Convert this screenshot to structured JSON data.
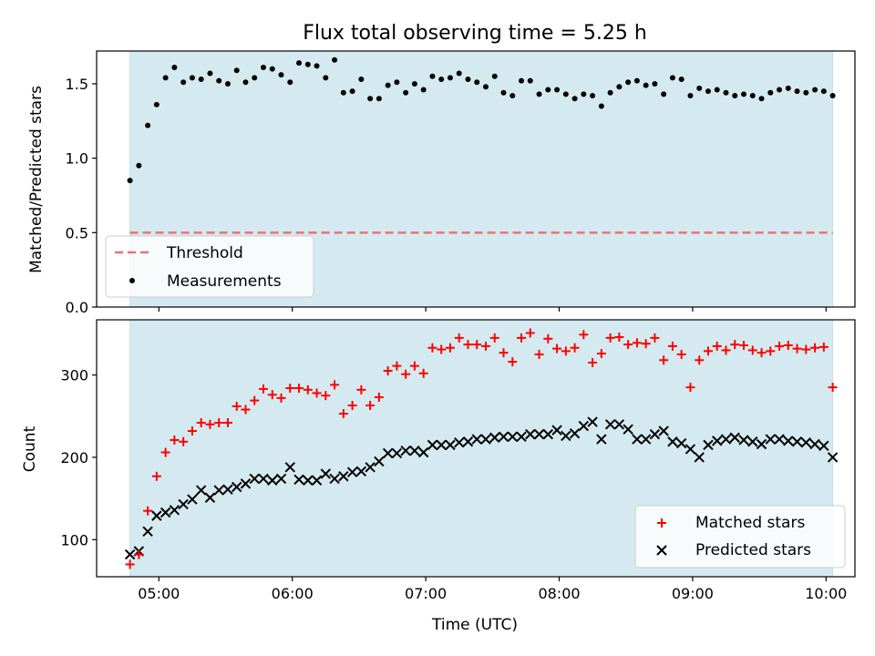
{
  "title": "Flux total observing time = 5.25 h",
  "colors": {
    "shade": "#d4eaf0",
    "threshold": "#f07070",
    "measurement": "#000000",
    "matched": "#ff0000",
    "predicted": "#000000"
  },
  "chart_data": [
    {
      "type": "scatter",
      "ylabel": "Matched/Predicted stars",
      "ylim": [
        0,
        1.72
      ],
      "yticks": [
        "0.0",
        "0.5",
        "1.0",
        "1.5"
      ],
      "yticks_values": [
        0,
        0.5,
        1.0,
        1.5
      ],
      "threshold": 0.5,
      "shaded_range": [
        "04:47",
        "10:03"
      ],
      "legend": {
        "placement": "lower-left",
        "entries": [
          "Threshold",
          "Measurements"
        ]
      },
      "series": [
        {
          "name": "Measurements",
          "x": [
            "04:47",
            "04:51",
            "04:55",
            "04:59",
            "05:03",
            "05:07",
            "05:11",
            "05:15",
            "05:19",
            "05:23",
            "05:27",
            "05:31",
            "05:35",
            "05:39",
            "05:43",
            "05:47",
            "05:51",
            "05:55",
            "05:59",
            "06:03",
            "06:07",
            "06:11",
            "06:15",
            "06:19",
            "06:23",
            "06:27",
            "06:31",
            "06:35",
            "06:39",
            "06:43",
            "06:47",
            "06:51",
            "06:55",
            "06:59",
            "07:03",
            "07:07",
            "07:11",
            "07:15",
            "07:19",
            "07:23",
            "07:27",
            "07:31",
            "07:35",
            "07:39",
            "07:43",
            "07:47",
            "07:51",
            "07:55",
            "07:59",
            "08:03",
            "08:07",
            "08:11",
            "08:15",
            "08:19",
            "08:23",
            "08:27",
            "08:31",
            "08:35",
            "08:39",
            "08:43",
            "08:47",
            "08:51",
            "08:55",
            "08:59",
            "09:03",
            "09:07",
            "09:11",
            "09:15",
            "09:19",
            "09:23",
            "09:27",
            "09:31",
            "09:35",
            "09:39",
            "09:43",
            "09:47",
            "09:51",
            "09:55",
            "09:59",
            "10:03"
          ],
          "y": [
            0.85,
            0.95,
            1.22,
            1.36,
            1.54,
            1.61,
            1.51,
            1.54,
            1.53,
            1.57,
            1.52,
            1.5,
            1.59,
            1.51,
            1.54,
            1.61,
            1.6,
            1.56,
            1.51,
            1.64,
            1.63,
            1.62,
            1.54,
            1.66,
            1.44,
            1.45,
            1.53,
            1.4,
            1.4,
            1.49,
            1.51,
            1.44,
            1.5,
            1.46,
            1.55,
            1.53,
            1.54,
            1.57,
            1.53,
            1.51,
            1.48,
            1.55,
            1.44,
            1.42,
            1.52,
            1.52,
            1.43,
            1.46,
            1.46,
            1.43,
            1.4,
            1.43,
            1.42,
            1.35,
            1.44,
            1.48,
            1.51,
            1.52,
            1.49,
            1.5,
            1.43,
            1.54,
            1.53,
            1.42,
            1.47,
            1.45,
            1.46,
            1.44,
            1.42,
            1.43,
            1.42,
            1.4,
            1.44,
            1.46,
            1.47,
            1.45,
            1.44,
            1.46,
            1.45,
            1.42
          ]
        }
      ]
    },
    {
      "type": "scatter",
      "xlabel": "Time (UTC)",
      "ylabel": "Count",
      "ylim": [
        55,
        367
      ],
      "yticks": [
        "100",
        "200",
        "300"
      ],
      "yticks_values": [
        100,
        200,
        300
      ],
      "xlim": [
        "04:32",
        "10:13"
      ],
      "xticks": [
        "05:00",
        "06:00",
        "07:00",
        "08:00",
        "09:00",
        "10:00"
      ],
      "shaded_range": [
        "04:47",
        "10:03"
      ],
      "legend": {
        "placement": "lower-right",
        "entries": [
          "Matched stars",
          "Predicted stars"
        ]
      },
      "series": [
        {
          "name": "Matched stars",
          "x": [
            "04:47",
            "04:51",
            "04:55",
            "04:59",
            "05:03",
            "05:07",
            "05:11",
            "05:15",
            "05:19",
            "05:23",
            "05:27",
            "05:31",
            "05:35",
            "05:39",
            "05:43",
            "05:47",
            "05:51",
            "05:55",
            "05:59",
            "06:03",
            "06:07",
            "06:11",
            "06:15",
            "06:19",
            "06:23",
            "06:27",
            "06:31",
            "06:35",
            "06:39",
            "06:43",
            "06:47",
            "06:51",
            "06:55",
            "06:59",
            "07:03",
            "07:07",
            "07:11",
            "07:15",
            "07:19",
            "07:23",
            "07:27",
            "07:31",
            "07:35",
            "07:39",
            "07:43",
            "07:47",
            "07:51",
            "07:55",
            "07:59",
            "08:03",
            "08:07",
            "08:11",
            "08:15",
            "08:19",
            "08:23",
            "08:27",
            "08:31",
            "08:35",
            "08:39",
            "08:43",
            "08:47",
            "08:51",
            "08:55",
            "08:59",
            "09:03",
            "09:07",
            "09:11",
            "09:15",
            "09:19",
            "09:23",
            "09:27",
            "09:31",
            "09:35",
            "09:39",
            "09:43",
            "09:47",
            "09:51",
            "09:55",
            "09:59",
            "10:03"
          ],
          "y": [
            70,
            82,
            135,
            177,
            206,
            221,
            219,
            232,
            242,
            240,
            242,
            242,
            262,
            258,
            269,
            283,
            276,
            272,
            284,
            284,
            282,
            278,
            275,
            288,
            253,
            263,
            282,
            263,
            273,
            305,
            311,
            301,
            311,
            302,
            333,
            331,
            333,
            345,
            337,
            337,
            335,
            345,
            327,
            316,
            345,
            351,
            325,
            344,
            332,
            329,
            333,
            349,
            315,
            326,
            345,
            346,
            337,
            339,
            338,
            345,
            318,
            335,
            325,
            285,
            318,
            329,
            335,
            330,
            337,
            336,
            330,
            327,
            329,
            335,
            336,
            332,
            331,
            333,
            334,
            285
          ]
        },
        {
          "name": "Predicted stars",
          "x": [
            "04:47",
            "04:51",
            "04:55",
            "04:59",
            "05:03",
            "05:07",
            "05:11",
            "05:15",
            "05:19",
            "05:23",
            "05:27",
            "05:31",
            "05:35",
            "05:39",
            "05:43",
            "05:47",
            "05:51",
            "05:55",
            "05:59",
            "06:03",
            "06:07",
            "06:11",
            "06:15",
            "06:19",
            "06:23",
            "06:27",
            "06:31",
            "06:35",
            "06:39",
            "06:43",
            "06:47",
            "06:51",
            "06:55",
            "06:59",
            "07:03",
            "07:07",
            "07:11",
            "07:15",
            "07:19",
            "07:23",
            "07:27",
            "07:31",
            "07:35",
            "07:39",
            "07:43",
            "07:47",
            "07:51",
            "07:55",
            "07:59",
            "08:03",
            "08:07",
            "08:11",
            "08:15",
            "08:19",
            "08:23",
            "08:27",
            "08:31",
            "08:35",
            "08:39",
            "08:43",
            "08:47",
            "08:51",
            "08:55",
            "08:59",
            "09:03",
            "09:07",
            "09:11",
            "09:15",
            "09:19",
            "09:23",
            "09:27",
            "09:31",
            "09:35",
            "09:39",
            "09:43",
            "09:47",
            "09:51",
            "09:55",
            "09:59",
            "10:03"
          ],
          "y": [
            82,
            86,
            110,
            129,
            133,
            136,
            143,
            149,
            160,
            151,
            160,
            161,
            164,
            168,
            174,
            174,
            172,
            174,
            188,
            173,
            172,
            172,
            180,
            174,
            177,
            182,
            183,
            188,
            195,
            205,
            205,
            208,
            208,
            206,
            215,
            215,
            215,
            218,
            219,
            222,
            222,
            224,
            225,
            225,
            225,
            228,
            228,
            228,
            233,
            226,
            229,
            238,
            243,
            222,
            240,
            240,
            234,
            222,
            222,
            228,
            232,
            219,
            217,
            210,
            200,
            215,
            220,
            222,
            224,
            221,
            219,
            216,
            222,
            222,
            220,
            219,
            218,
            216,
            214,
            200
          ]
        }
      ]
    }
  ]
}
